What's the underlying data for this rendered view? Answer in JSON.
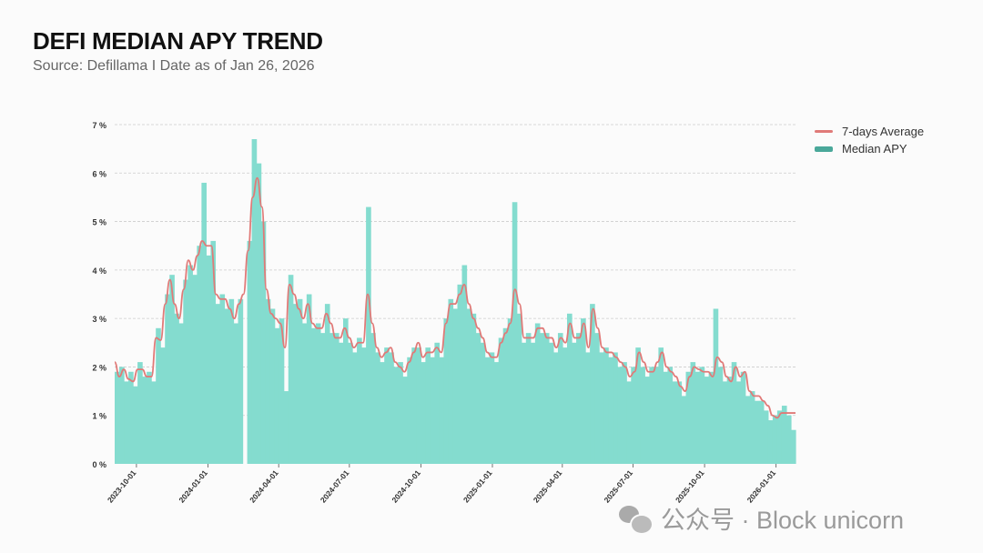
{
  "header": {
    "title": "DEFI MEDIAN APY TREND",
    "subtitle": "Source: Defillama  I  Date as of Jan 26, 2026"
  },
  "watermark": {
    "text": "公众号 · Block unicorn"
  },
  "colors": {
    "average": "#e07a78",
    "median": "#84dccf",
    "median_legend": "#4aa89a",
    "grid": "#cccccc"
  },
  "chart_data": {
    "type": "area",
    "title": "DEFI MEDIAN APY TREND",
    "xlabel": "",
    "ylabel": "",
    "ylim": [
      0,
      7
    ],
    "yticks": [
      "0 %",
      "1 %",
      "2 %",
      "3 %",
      "4 %",
      "5 %",
      "6 %",
      "7 %"
    ],
    "xlim": [
      "2023-09-03",
      "2026-01-26"
    ],
    "xticks": [
      "2023-10-01",
      "2024-01-01",
      "2024-04-01",
      "2024-07-01",
      "2024-10-01",
      "2025-01-01",
      "2025-04-01",
      "2025-07-01",
      "2025-10-01",
      "2026-01-01"
    ],
    "grid": true,
    "legend_position": "top-right",
    "legend": [
      "7-days Average",
      "Median APY"
    ],
    "series": [
      {
        "name": "7-days Average",
        "type": "line",
        "values": [
          2.1,
          1.8,
          1.95,
          1.75,
          1.7,
          1.95,
          1.95,
          1.8,
          1.8,
          2.6,
          2.55,
          3.3,
          3.8,
          3.3,
          3.0,
          3.6,
          4.2,
          4.0,
          4.3,
          4.6,
          4.5,
          4.5,
          3.5,
          3.4,
          3.4,
          3.2,
          3.0,
          3.3,
          3.5,
          4.4,
          5.5,
          5.9,
          5.3,
          3.6,
          3.1,
          3.0,
          2.9,
          2.4,
          3.7,
          3.5,
          3.2,
          3.0,
          3.3,
          2.9,
          2.8,
          2.8,
          3.1,
          2.9,
          2.6,
          2.6,
          2.8,
          2.6,
          2.4,
          2.5,
          2.5,
          3.5,
          2.9,
          2.4,
          2.2,
          2.3,
          2.4,
          2.1,
          2.0,
          1.9,
          2.1,
          2.3,
          2.5,
          2.2,
          2.3,
          2.3,
          2.4,
          2.3,
          2.9,
          3.3,
          3.3,
          3.5,
          3.7,
          3.3,
          3.0,
          2.8,
          2.6,
          2.3,
          2.2,
          2.2,
          2.5,
          2.7,
          2.9,
          3.6,
          3.3,
          2.6,
          2.6,
          2.6,
          2.8,
          2.8,
          2.6,
          2.6,
          2.4,
          2.6,
          2.5,
          2.9,
          2.6,
          2.6,
          2.9,
          2.4,
          3.2,
          2.8,
          2.4,
          2.3,
          2.3,
          2.2,
          2.1,
          2.0,
          1.8,
          1.9,
          2.3,
          2.1,
          1.9,
          1.9,
          2.1,
          2.3,
          2.0,
          1.9,
          1.8,
          1.6,
          1.5,
          1.8,
          2.0,
          1.95,
          1.9,
          1.9,
          1.8,
          2.2,
          2.1,
          1.8,
          1.7,
          2.0,
          1.8,
          1.9,
          1.5,
          1.4,
          1.4,
          1.3,
          1.2,
          1.0,
          0.95,
          1.05,
          1.05,
          1.05,
          1.05
        ]
      },
      {
        "name": "Median APY",
        "type": "area",
        "values": [
          1.9,
          2.0,
          1.7,
          1.9,
          1.6,
          2.1,
          1.8,
          1.9,
          1.7,
          2.8,
          2.4,
          3.5,
          3.9,
          3.1,
          2.9,
          3.8,
          4.1,
          3.9,
          4.5,
          5.8,
          4.3,
          4.6,
          3.3,
          3.5,
          3.2,
          3.4,
          2.9,
          3.4,
          null,
          4.6,
          6.7,
          6.2,
          5.0,
          3.4,
          3.2,
          2.8,
          3.0,
          1.5,
          3.9,
          3.3,
          3.4,
          2.9,
          3.5,
          2.8,
          2.9,
          2.7,
          3.3,
          2.7,
          2.7,
          2.5,
          3.0,
          2.5,
          2.3,
          2.6,
          2.4,
          5.3,
          2.7,
          2.3,
          2.1,
          2.4,
          2.3,
          2.0,
          2.1,
          1.8,
          2.2,
          2.4,
          2.4,
          2.1,
          2.4,
          2.2,
          2.5,
          2.2,
          3.0,
          3.4,
          3.2,
          3.7,
          4.1,
          3.2,
          3.1,
          2.7,
          2.5,
          2.2,
          2.3,
          2.1,
          2.6,
          2.8,
          3.0,
          5.4,
          3.1,
          2.5,
          2.7,
          2.5,
          2.9,
          2.7,
          2.7,
          2.5,
          2.3,
          2.7,
          2.4,
          3.1,
          2.5,
          2.7,
          3.0,
          2.3,
          3.3,
          2.7,
          2.3,
          2.4,
          2.2,
          2.3,
          2.0,
          2.1,
          1.7,
          2.0,
          2.4,
          2.0,
          1.8,
          2.0,
          2.0,
          2.4,
          1.9,
          2.0,
          1.7,
          1.7,
          1.4,
          1.9,
          2.1,
          1.9,
          2.0,
          1.8,
          1.9,
          3.2,
          2.0,
          1.7,
          1.8,
          2.1,
          1.7,
          1.9,
          1.4,
          1.5,
          1.3,
          1.3,
          1.1,
          0.9,
          1.0,
          1.1,
          1.2,
          1.0,
          0.7
        ]
      }
    ]
  }
}
